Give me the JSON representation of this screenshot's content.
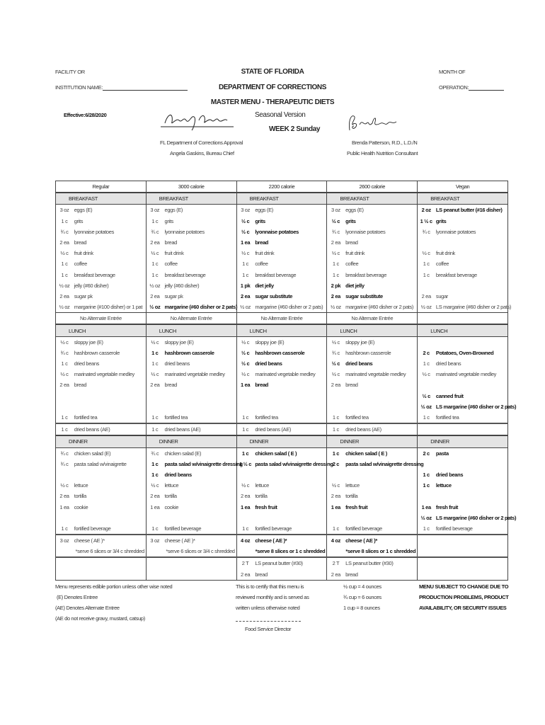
{
  "header": {
    "facility_line1": "FACILITY OR",
    "facility_line2": "INSTITUTION NAME:",
    "title1": "STATE OF FLORIDA",
    "title2": "DEPARTMENT OF CORRECTIONS",
    "title3": "MASTER MENU - THERAPEUTIC DIETS",
    "month_line1": "MONTH OF",
    "month_line2": "OPERATION:",
    "effective": "Effective:6/28/2020",
    "seasonal": "Seasonal Version",
    "week": "WEEK 2 Sunday",
    "left_signature": "Angela Gaskins",
    "left_sig_line1": "FL Department of Corrections Approval",
    "left_sig_line2": "Angela Gaskins, Bureau Chief",
    "right_signature": "Brenda Patterson",
    "right_sig_line1": "Brenda Patterson, R.D., L.D./N",
    "right_sig_line2": "Public Health Nutrition Consultant"
  },
  "table": {
    "columns": [
      "Regular",
      "3000 calorie",
      "2200 calorie",
      "2600 calorie",
      "Vegan"
    ],
    "rows": [
      {
        "type": "section",
        "label": "BREAKFAST"
      },
      {
        "type": "item",
        "cells": [
          {
            "qty": "3 oz",
            "item": "eggs (E)"
          },
          {
            "qty": "3 oz",
            "item": "eggs (E)"
          },
          {
            "qty": "3 oz",
            "item": "eggs (E)"
          },
          {
            "qty": "3 oz",
            "item": "eggs (E)"
          },
          {
            "qty": "2 oz",
            "item": "LS peanut butter (#16 disher)",
            "bold": true
          }
        ]
      },
      {
        "type": "item",
        "cells": [
          {
            "qty": "1 c",
            "item": "grits"
          },
          {
            "qty": "1 c",
            "item": "grits"
          },
          {
            "qty": "½ c",
            "item": "grits",
            "bold": true
          },
          {
            "qty": "½ c",
            "item": "grits",
            "bold": true
          },
          {
            "qty": "1 ½ c",
            "item": "grits",
            "bold": true
          }
        ]
      },
      {
        "type": "item",
        "cells": [
          {
            "qty": "¾ c",
            "item": "lyonnaise potatoes"
          },
          {
            "qty": "¾ c",
            "item": "lyonnaise potatoes"
          },
          {
            "qty": "½ c",
            "item": "lyonnaise potatoes",
            "bold": true
          },
          {
            "qty": "¾ c",
            "item": "lyonnaise potatoes"
          },
          {
            "qty": "¾ c",
            "item": "lyonnaise potatoes"
          }
        ]
      },
      {
        "type": "item",
        "cells": [
          {
            "qty": "2 ea",
            "item": "bread"
          },
          {
            "qty": "2 ea",
            "item": "bread"
          },
          {
            "qty": "1 ea",
            "item": "bread",
            "bold": true
          },
          {
            "qty": "2 ea",
            "item": "bread"
          },
          null
        ]
      },
      {
        "type": "item",
        "cells": [
          {
            "qty": "½ c",
            "item": "fruit drink"
          },
          {
            "qty": "½ c",
            "item": "fruit drink"
          },
          {
            "qty": "½ c",
            "item": "fruit drink"
          },
          {
            "qty": "½ c",
            "item": "fruit drink"
          },
          {
            "qty": "½ c",
            "item": "fruit drink"
          }
        ]
      },
      {
        "type": "item",
        "cells": [
          {
            "qty": "1 c",
            "item": "coffee"
          },
          {
            "qty": "1 c",
            "item": "coffee"
          },
          {
            "qty": "1 c",
            "item": "coffee"
          },
          {
            "qty": "1 c",
            "item": "coffee"
          },
          {
            "qty": "1 c",
            "item": "coffee"
          }
        ]
      },
      {
        "type": "item",
        "cells": [
          {
            "qty": "1 c",
            "item": "breakfast beverage"
          },
          {
            "qty": "1 c",
            "item": "breakfast beverage"
          },
          {
            "qty": "1 c",
            "item": "breakfast beverage"
          },
          {
            "qty": "1 c",
            "item": "breakfast beverage"
          },
          {
            "qty": "1 c",
            "item": "breakfast beverage"
          }
        ]
      },
      {
        "type": "item",
        "cells": [
          {
            "qty": "½ oz",
            "item": "jelly (#60 disher)"
          },
          {
            "qty": "½ oz",
            "item": "jelly (#60 disher)"
          },
          {
            "qty": "1 pk",
            "item": "diet jelly",
            "bold": true
          },
          {
            "qty": "2 pk",
            "item": "diet jelly",
            "bold": true
          },
          null
        ]
      },
      {
        "type": "item",
        "cells": [
          {
            "qty": "2 ea",
            "item": "sugar pk"
          },
          {
            "qty": "2 ea",
            "item": "sugar pk"
          },
          {
            "qty": "2 ea",
            "item": "sugar substitute",
            "bold": true
          },
          {
            "qty": "2 ea",
            "item": "sugar substitute",
            "bold": true
          },
          {
            "qty": "2 ea",
            "item": "sugar"
          }
        ]
      },
      {
        "type": "item",
        "cells": [
          {
            "qty": "½ oz",
            "item": "margarine (#100 disher) or 1 pat"
          },
          {
            "qty": "½ oz",
            "item": "margarine (#60 disher or 2 pats)",
            "bold": true
          },
          {
            "qty": "½ oz",
            "item": "margarine (#60 disher or 2 pats)"
          },
          {
            "qty": "½ oz",
            "item": "margarine (#60 disher or 2 pats)"
          },
          {
            "qty": "½ oz",
            "item": "LS margarine (#60 disher or 2 pats)"
          }
        ]
      },
      {
        "type": "note",
        "texts": [
          "No Alternate Entrée",
          "No Alternate Entrée",
          "No Alternate Entrée",
          "No Alternate Entrée",
          ""
        ]
      },
      {
        "type": "section",
        "label": "LUNCH"
      },
      {
        "type": "item",
        "cells": [
          {
            "qty": "½ c",
            "item": "sloppy joe (E)"
          },
          {
            "qty": "½ c",
            "item": "sloppy joe (E)"
          },
          {
            "qty": "½ c",
            "item": "sloppy joe (E)"
          },
          {
            "qty": "½ c",
            "item": "sloppy joe (E)"
          },
          null
        ]
      },
      {
        "type": "item",
        "cells": [
          {
            "qty": "¾ c",
            "item": "hashbrown casserole"
          },
          {
            "qty": "1 c",
            "item": "hashbrown casserole",
            "bold": true
          },
          {
            "qty": "½ c",
            "item": "hashbrown casserole",
            "bold": true
          },
          {
            "qty": "¾ c",
            "item": "hashbrown casserole"
          },
          {
            "qty": "2 c",
            "item": "Potatoes, Oven-Browned",
            "bold": true
          }
        ]
      },
      {
        "type": "item",
        "cells": [
          {
            "qty": "1 c",
            "item": "dried beans"
          },
          {
            "qty": "1 c",
            "item": "dried beans"
          },
          {
            "qty": "½ c",
            "item": "dried beans",
            "bold": true
          },
          {
            "qty": "½ c",
            "item": "dried beans",
            "bold": true
          },
          {
            "qty": "1 c",
            "item": "dried beans"
          }
        ]
      },
      {
        "type": "item",
        "cells": [
          {
            "qty": "½ c",
            "item": "marinated vegetable medley"
          },
          {
            "qty": "½ c",
            "item": "marinated vegetable medley"
          },
          {
            "qty": "½ c",
            "item": "marinated vegetable medley"
          },
          {
            "qty": "½ c",
            "item": "marinated vegetable medley"
          },
          {
            "qty": "½ c",
            "item": "marinated vegetable medley"
          }
        ]
      },
      {
        "type": "item",
        "cells": [
          {
            "qty": "2 ea",
            "item": "bread"
          },
          {
            "qty": "2 ea",
            "item": "bread"
          },
          {
            "qty": "1 ea",
            "item": "bread",
            "bold": true
          },
          {
            "qty": "2 ea",
            "item": "bread"
          },
          null
        ]
      },
      {
        "type": "item",
        "cells": [
          null,
          null,
          null,
          null,
          {
            "qty": "½ c",
            "item": "canned fruit",
            "bold": true
          }
        ]
      },
      {
        "type": "item",
        "cells": [
          null,
          null,
          null,
          null,
          {
            "qty": "½ oz",
            "item": "LS margarine (#60 disher or 2 pats)",
            "bold": true
          }
        ]
      },
      {
        "type": "item",
        "cells": [
          {
            "qty": "1 c",
            "item": "fortified tea"
          },
          {
            "qty": "1 c",
            "item": "fortified tea"
          },
          {
            "qty": "1 c",
            "item": "fortified tea"
          },
          {
            "qty": "1 c",
            "item": "fortified tea"
          },
          {
            "qty": "1 c",
            "item": "fortified tea"
          }
        ]
      },
      {
        "type": "sep",
        "cells": [
          {
            "qty": "1 c",
            "item": "dried beans (AE)"
          },
          {
            "qty": "1 c",
            "item": "dried beans (AE)"
          },
          {
            "qty": "1 c",
            "item": "dried beans (AE)"
          },
          {
            "qty": "1 c",
            "item": "dried beans (AE)"
          },
          null
        ]
      },
      {
        "type": "section",
        "label": "DINNER"
      },
      {
        "type": "item",
        "cells": [
          {
            "qty": "¾ c",
            "item": "chicken salad (E)"
          },
          {
            "qty": "¾ c",
            "item": "chicken salad (E)"
          },
          {
            "qty": "1 c",
            "item": "chicken salad ( E )",
            "bold": true
          },
          {
            "qty": "1 c",
            "item": "chicken salad ( E )",
            "bold": true
          },
          {
            "qty": "2 c",
            "item": "pasta",
            "bold": true
          }
        ]
      },
      {
        "type": "item",
        "cells": [
          {
            "qty": "¾ c",
            "item": "pasta salad w/vinaigrette"
          },
          {
            "qty": "1 c",
            "item": "pasta salad w/vinaigrette dressing",
            "bold": true
          },
          {
            "qty": "1 ½ c",
            "item": "pasta salad w/vinaigrette dressing",
            "bold": true
          },
          {
            "qty": "2 c",
            "item": "pasta salad w/vinaigrette dressing",
            "bold": true
          },
          null
        ]
      },
      {
        "type": "item",
        "cells": [
          null,
          {
            "qty": "1 c",
            "item": "dried beans",
            "bold": true
          },
          null,
          null,
          {
            "qty": "1 c",
            "item": "dried beans",
            "bold": true
          }
        ]
      },
      {
        "type": "item",
        "cells": [
          {
            "qty": "½ c",
            "item": "lettuce"
          },
          {
            "qty": "½ c",
            "item": "lettuce"
          },
          {
            "qty": "½ c",
            "item": "lettuce"
          },
          {
            "qty": "½ c",
            "item": "lettuce"
          },
          {
            "qty": "1 c",
            "item": "lettuce",
            "bold": true
          }
        ]
      },
      {
        "type": "item",
        "cells": [
          {
            "qty": "2 ea",
            "item": "tortilla"
          },
          {
            "qty": "2 ea",
            "item": "tortilla"
          },
          {
            "qty": "2 ea",
            "item": "tortilla"
          },
          {
            "qty": "2 ea",
            "item": "tortilla"
          },
          null
        ]
      },
      {
        "type": "item",
        "cells": [
          {
            "qty": "1 ea",
            "item": "cookie"
          },
          {
            "qty": "1 ea",
            "item": "cookie"
          },
          {
            "qty": "1 ea",
            "item": "fresh fruit",
            "bold": true
          },
          {
            "qty": "1 ea",
            "item": "fresh fruit",
            "bold": true
          },
          {
            "qty": "1 ea",
            "item": "fresh fruit",
            "bold": true
          }
        ]
      },
      {
        "type": "item",
        "cells": [
          null,
          null,
          null,
          null,
          {
            "qty": "½ oz",
            "item": "LS margarine (#60 disher or 2 pats)",
            "bold": true
          }
        ]
      },
      {
        "type": "item",
        "cells": [
          {
            "qty": "1 c",
            "item": "fortified beverage"
          },
          {
            "qty": "1 c",
            "item": "fortified beverage"
          },
          {
            "qty": "1 c",
            "item": "fortified beverage"
          },
          {
            "qty": "1 c",
            "item": "fortified beverage"
          },
          {
            "qty": "1 c",
            "item": "fortified beverage"
          }
        ]
      },
      {
        "type": "sep",
        "cells": [
          {
            "qty": "3 oz",
            "item": "cheese ( AE )*"
          },
          {
            "qty": "3 oz",
            "item": "cheese ( AE )*"
          },
          {
            "qty": "4 oz",
            "item": "cheese ( AE )*",
            "bold": true
          },
          {
            "qty": "4 oz",
            "item": "cheese ( AE )*",
            "bold": true
          },
          null
        ]
      },
      {
        "type": "note2",
        "cells": [
          {
            "item": "*serve 6 slices or 3/4 c shredded"
          },
          {
            "item": "*serve 6 slices or 3/4 c shredded"
          },
          {
            "item": "*serve 8 slices or 1 c shredded",
            "bold": true
          },
          {
            "item": "*serve 8 slices or 1 c shredded",
            "bold": true
          },
          null
        ]
      },
      {
        "type": "sep",
        "cells": [
          null,
          null,
          {
            "qty": "2 T",
            "item": "LS peanut butter (#30)"
          },
          {
            "qty": "2 T",
            "item": "LS peanut butter (#30)"
          },
          null
        ]
      },
      {
        "type": "end",
        "cells": [
          null,
          null,
          {
            "qty": "2 ea",
            "item": "bread"
          },
          {
            "qty": "2 ea",
            "item": "bread"
          },
          null
        ]
      }
    ]
  },
  "footer": {
    "notes": [
      "Menu represents edible portion unless other wise noted",
      "(E)  Denotes Entree",
      "(AE) Denotes Alternate Entree",
      "(AE do not receive gravy, mustard, catsup)"
    ],
    "certify": [
      "This is to certify that this menu is",
      "reviewed monthly and is served as",
      "written unless otherwise noted"
    ],
    "director": "Food Service Director",
    "conversions": [
      "½ cup = 4 ounces",
      "¾ cup = 6 ounces",
      "1 cup = 8 ounces"
    ],
    "disclaimer": [
      "MENU SUBJECT TO CHANGE DUE TO",
      "PRODUCTION PROBLEMS, PRODUCT",
      "AVAILABILITY, OR SECURITY ISSUES"
    ]
  }
}
